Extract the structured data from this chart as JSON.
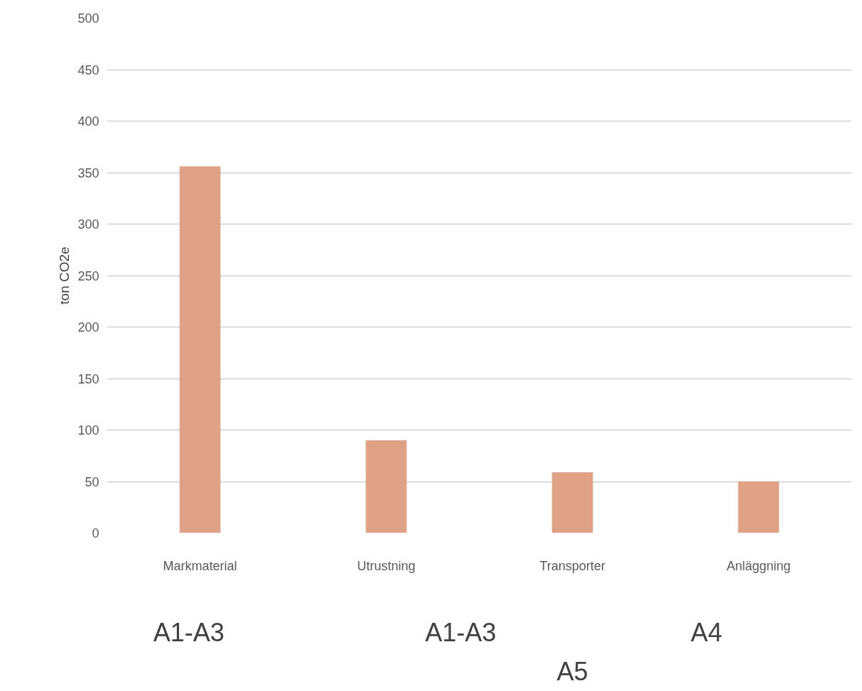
{
  "chart_data": {
    "type": "bar",
    "ylabel": "ton CO2e",
    "categories": [
      "Markmaterial",
      "Utrustning",
      "Transporter",
      "Anläggning"
    ],
    "values": [
      356,
      90,
      59,
      50
    ],
    "color": "#dfa287",
    "ylim": [
      0,
      500
    ],
    "yticks": [
      0,
      50,
      100,
      150,
      200,
      250,
      300,
      350,
      400,
      450,
      500
    ],
    "grid": "y",
    "annotations": [
      "A1-A3",
      "A1-A3",
      "A4",
      "A5"
    ]
  }
}
